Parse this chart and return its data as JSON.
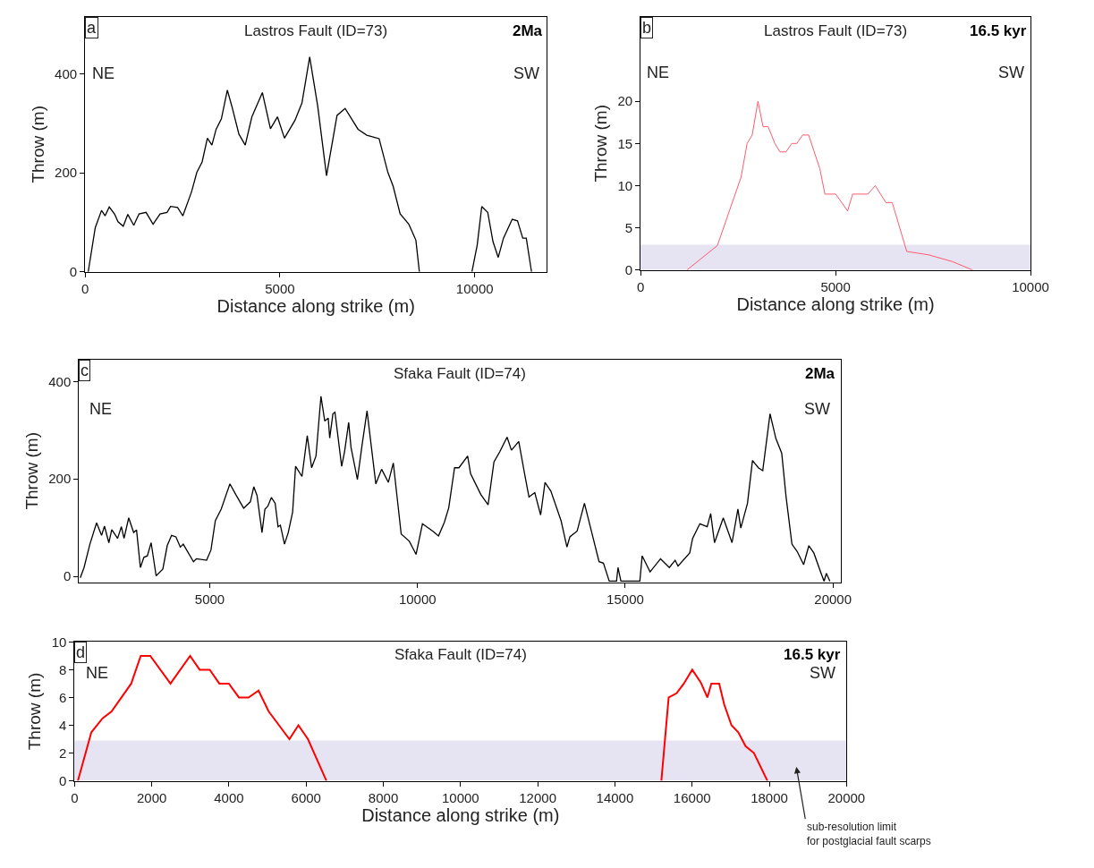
{
  "chart_data": [
    {
      "type": "line",
      "title": "Lastros Fault (ID=73)",
      "xlabel": "Distance along strike (m)",
      "ylabel": "Throw (m)",
      "xlim": [
        0,
        11850
      ],
      "ylim": [
        0,
        515
      ],
      "xticks": [
        0,
        5000,
        10000
      ],
      "yticks": [
        0,
        200,
        400
      ],
      "grid": false,
      "marker": "none",
      "line_style": "solid",
      "annotations": [
        "a",
        "NE",
        "SW",
        "2Ma"
      ],
      "series": [
        {
          "color": "#000000",
          "x": [
            81,
            261,
            423,
            513,
            621,
            755,
            845,
            980,
            1097,
            1250,
            1385,
            1565,
            1745,
            1924,
            2104,
            2194,
            2374,
            2509,
            2734,
            2869,
            3004,
            3139,
            3255,
            3363,
            3498,
            3651,
            3768,
            3948,
            4110,
            4281,
            4550,
            4757,
            4937,
            5117,
            5387,
            5566,
            5764,
            5971,
            6196,
            6466,
            6673,
            7005,
            7230,
            7545,
            7770,
            7905,
            8085,
            8309,
            8489,
            8579
          ],
          "values": [
            0,
            89,
            124,
            113,
            131,
            117,
            101,
            92,
            116,
            94,
            117,
            120,
            96,
            117,
            120,
            132,
            130,
            113,
            162,
            201,
            222,
            270,
            256,
            288,
            309,
            367,
            334,
            278,
            256,
            313,
            362,
            289,
            313,
            270,
            306,
            341,
            434,
            334,
            194,
            316,
            330,
            288,
            276,
            269,
            201,
            173,
            117,
            96,
            64,
            0
          ]
        },
        {
          "color": "#000000",
          "x": [
            9928,
            10063,
            10180,
            10333,
            10468,
            10603,
            10737,
            10962,
            11097,
            11232,
            11322,
            11457
          ],
          "values": [
            0,
            54,
            132,
            120,
            61,
            29,
            68,
            106,
            103,
            68,
            68,
            0
          ]
        }
      ]
    },
    {
      "type": "line",
      "title": "Lastros Fault (ID=73)",
      "xlabel": "Distance along strike (m)",
      "ylabel": "Throw (m)",
      "xlim": [
        0,
        10000
      ],
      "ylim": [
        0,
        30
      ],
      "xticks": [
        0,
        5000,
        10000
      ],
      "yticks": [
        0,
        5,
        10,
        15,
        20
      ],
      "grid": false,
      "marker": "none",
      "line_style": "solid",
      "annotations": [
        "b",
        "NE",
        "SW",
        "16.5 kyr"
      ],
      "bands": [
        {
          "axis": "y",
          "from": 0,
          "to": 3,
          "label": null,
          "color": "#e6e4f2"
        }
      ],
      "series": [
        {
          "color": "#ff5a6e",
          "x": [
            1188,
            1969,
            2576,
            2732,
            2862,
            3010,
            3140,
            3270,
            3443,
            3573,
            3729,
            3877,
            4007,
            4154,
            4310,
            4597,
            4727,
            5004,
            5308,
            5438,
            5828,
            6019,
            6288,
            6453,
            6826,
            7389,
            7996,
            8517
          ],
          "values": [
            0,
            2.9,
            11,
            15,
            16,
            20,
            17,
            17,
            15,
            14,
            14,
            15,
            15,
            16,
            16,
            12,
            9,
            9,
            7,
            9,
            9,
            10,
            8,
            8,
            2.2,
            1.8,
            1,
            0
          ]
        }
      ]
    },
    {
      "type": "line",
      "title": "Sfaka Fault (ID=74)",
      "ylabel": "Throw (m)",
      "xlim": [
        1850,
        20200
      ],
      "ylim": [
        -12,
        445
      ],
      "xticks": [
        5000,
        10000,
        15000,
        20000
      ],
      "yticks": [
        0,
        200,
        400
      ],
      "grid": false,
      "marker": "none",
      "line_style": "solid",
      "annotations": [
        "c",
        "NE",
        "SW",
        "2Ma"
      ],
      "series": [
        {
          "color": "#000000",
          "x": [
            1882,
            1973,
            2114,
            2275,
            2395,
            2465,
            2570,
            2640,
            2781,
            2872,
            2935,
            3048,
            3167,
            3237,
            3329,
            3413,
            3497,
            3588,
            3708,
            3870,
            3975,
            4080,
            4185,
            4291,
            4361,
            4607,
            4677,
            4923,
            5028,
            5133,
            5274,
            5484,
            5625,
            5815,
            5976,
            6060,
            6137,
            6257,
            6327,
            6397,
            6482,
            6573,
            6643,
            6699,
            6798,
            6889,
            6994,
            7065,
            7219,
            7346,
            7451,
            7556,
            7676,
            7767,
            7851,
            7886,
            7964,
            8013,
            8174,
            8244,
            8343,
            8399,
            8553,
            8666,
            8785,
            8996,
            9136,
            9298,
            9417,
            9607,
            9803,
            9965,
            10119,
            10365,
            10506,
            10646,
            10752,
            10892,
            10997,
            11207,
            11277,
            11524,
            11699,
            11840,
            11981,
            12156,
            12261,
            12437,
            12577,
            12683,
            12823,
            12964,
            13069,
            13210,
            13456,
            13597,
            13667,
            13843,
            14018,
            14159,
            14370,
            14475,
            14615,
            14791,
            14826,
            14896,
            15352,
            15408,
            15598,
            15850,
            16061,
            16201,
            16271,
            16552,
            16622,
            16797,
            16973,
            17057,
            17149,
            17360,
            17571,
            17712,
            17782,
            17943,
            18063,
            18205,
            18310,
            18486,
            18626,
            18767,
            18872,
            19013,
            19139,
            19294,
            19420,
            19540,
            19715,
            19786,
            19842,
            19926
          ],
          "values": [
            -3,
            18,
            66,
            110,
            84,
            103,
            69,
            96,
            78,
            102,
            78,
            120,
            90,
            95,
            18,
            39,
            42,
            69,
            1,
            15,
            63,
            84,
            81,
            60,
            66,
            30,
            36,
            33,
            54,
            114,
            138,
            190,
            168,
            140,
            153,
            184,
            166,
            90,
            138,
            144,
            162,
            150,
            102,
            105,
            66,
            90,
            132,
            226,
            205,
            289,
            223,
            247,
            370,
            319,
            325,
            284,
            334,
            337,
            226,
            256,
            316,
            265,
            199,
            270,
            340,
            190,
            220,
            193,
            233,
            87,
            72,
            45,
            108,
            93,
            83,
            111,
            141,
            223,
            223,
            247,
            211,
            168,
            147,
            235,
            256,
            286,
            259,
            277,
            211,
            163,
            172,
            126,
            193,
            175,
            114,
            60,
            81,
            93,
            150,
            102,
            30,
            27,
            -10,
            -10,
            18,
            -10,
            -10,
            42,
            9,
            36,
            18,
            33,
            21,
            48,
            78,
            108,
            102,
            129,
            69,
            120,
            69,
            138,
            99,
            150,
            238,
            223,
            217,
            334,
            283,
            253,
            163,
            66,
            51,
            24,
            63,
            48,
            6,
            -10,
            6,
            -10
          ]
        }
      ]
    },
    {
      "type": "line",
      "title": "Sfaka Fault (ID=74)",
      "xlabel": "Distance along strike (m)",
      "ylabel": "Throw (m)",
      "xlim": [
        0,
        20000
      ],
      "ylim": [
        0,
        10
      ],
      "xticks": [
        0,
        2000,
        4000,
        6000,
        8000,
        10000,
        12000,
        14000,
        16000,
        18000,
        20000
      ],
      "yticks": [
        0,
        2,
        4,
        6,
        8,
        10
      ],
      "grid": false,
      "marker": "none",
      "line_style": "solid",
      "annotations": [
        "d",
        "NE",
        "SW",
        "16.5 kyr",
        "sub-resolution limit\nfor postglacial fault scarps"
      ],
      "bands": [
        {
          "axis": "y",
          "from": 0,
          "to": 2.9,
          "label": null,
          "color": "#e6e4f2"
        }
      ],
      "series": [
        {
          "color": "#ff0000",
          "x": [
            87,
            436,
            727,
            959,
            1468,
            1715,
            1962,
            2485,
            2994,
            3241,
            3503,
            3750,
            3997,
            4259,
            4506,
            4767,
            5029,
            5567,
            5799,
            6047,
            6526
          ],
          "values": [
            0,
            3.5,
            4.5,
            5,
            7,
            9,
            9,
            7,
            9,
            8,
            8,
            7,
            7,
            6,
            6,
            6.5,
            5,
            3,
            4,
            3,
            0
          ]
        },
        {
          "color": "#ff0000",
          "x": [
            15203,
            15392,
            15596,
            15785,
            16003,
            16221,
            16395,
            16497,
            16701,
            16831,
            17020,
            17195,
            17384,
            17602,
            17951
          ],
          "values": [
            0,
            6,
            6.3,
            7,
            8,
            7.1,
            6,
            7,
            7,
            5.5,
            4,
            3.5,
            2.5,
            2,
            0
          ]
        }
      ]
    }
  ]
}
